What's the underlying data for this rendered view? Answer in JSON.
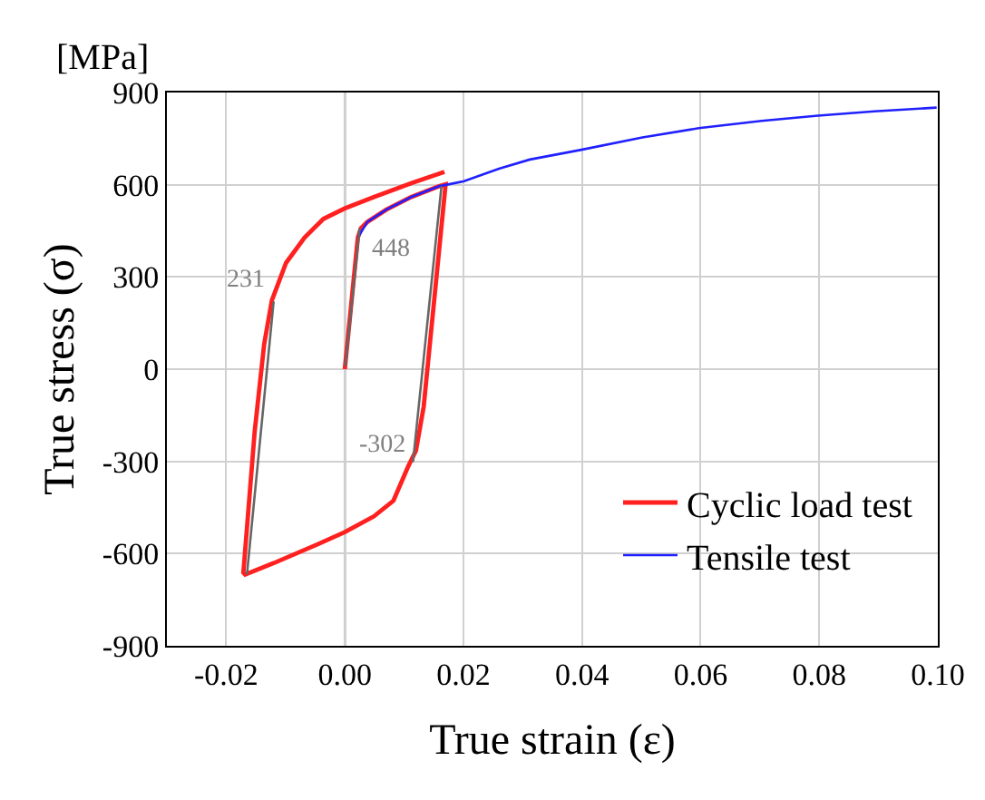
{
  "chart_data": {
    "type": "line",
    "xlabel": "True strain (ε)",
    "ylabel": "True stress (σ)",
    "xlim": [
      -0.03,
      0.1
    ],
    "xticks": [
      {
        "value": -0.02,
        "label": "-0.02"
      },
      {
        "value": 0,
        "label": "0.00"
      },
      {
        "value": 0.02,
        "label": "0.02"
      },
      {
        "value": 0.04,
        "label": "0.04"
      },
      {
        "value": 0.06,
        "label": "0.06"
      },
      {
        "value": 0.08,
        "label": "0.08"
      },
      {
        "value": 0.1,
        "label": "0.10"
      }
    ],
    "ylim": [
      -900,
      900
    ],
    "yticks": [
      -900,
      -600,
      -300,
      0,
      300,
      600,
      900
    ],
    "grid": true,
    "legend": "bottom right",
    "line_style": "solid",
    "marker": "none",
    "ref_lines": [
      {
        "axis": "x",
        "value": 0,
        "color": "#808080"
      }
    ],
    "annotations": [
      "[MPa]",
      {
        "text": "448",
        "x": 0.0027,
        "y": 448
      },
      {
        "text": "231",
        "x": -0.0123,
        "y": 231
      },
      {
        "text": "-302",
        "x": 0.0115,
        "y": -302
      }
    ],
    "series": [
      {
        "name": "Cyclic load test",
        "color": "#ff2020",
        "x": [
          0,
          0.0022,
          0.0027,
          0.0038,
          0.007,
          0.0112,
          0.0159,
          0.017,
          0.0133,
          0.012,
          0.0107,
          0.0082,
          0.0049,
          0,
          -0.0046,
          -0.012,
          -0.0168,
          -0.0171,
          -0.0152,
          -0.0136,
          -0.0123,
          -0.0099,
          -0.0068,
          -0.0036,
          0,
          0.0049,
          0.0112,
          0.0168
        ],
        "values": [
          0,
          428,
          458,
          479,
          519,
          560,
          595,
          601,
          -122,
          -265,
          -316,
          -428,
          -479,
          -530,
          -570,
          -631,
          -668,
          -662,
          -204,
          81,
          224,
          346,
          428,
          489,
          523,
          560,
          605,
          642
        ]
      },
      {
        "name": "Tensile test",
        "color": "#2020ff",
        "x": [
          0.0022,
          0.0038,
          0.007,
          0.0112,
          0.0159,
          0.02,
          0.026,
          0.0312,
          0.0397,
          0.0502,
          0.0597,
          0.0703,
          0.0798,
          0.0893,
          0.0998
        ],
        "values": [
          428,
          479,
          519,
          560,
          595,
          611,
          652,
          682,
          713,
          754,
          784,
          808,
          825,
          839,
          851
        ]
      },
      {
        "color": "#666666",
        "x": [
          0.0001,
          0.0025
        ],
        "values": [
          10,
          458
        ]
      },
      {
        "color": "#666666",
        "x": [
          0.0115,
          0.0163
        ],
        "values": [
          -302,
          595
        ]
      },
      {
        "color": "#666666",
        "x": [
          -0.0165,
          -0.012
        ],
        "values": [
          -668,
          220
        ]
      }
    ]
  }
}
